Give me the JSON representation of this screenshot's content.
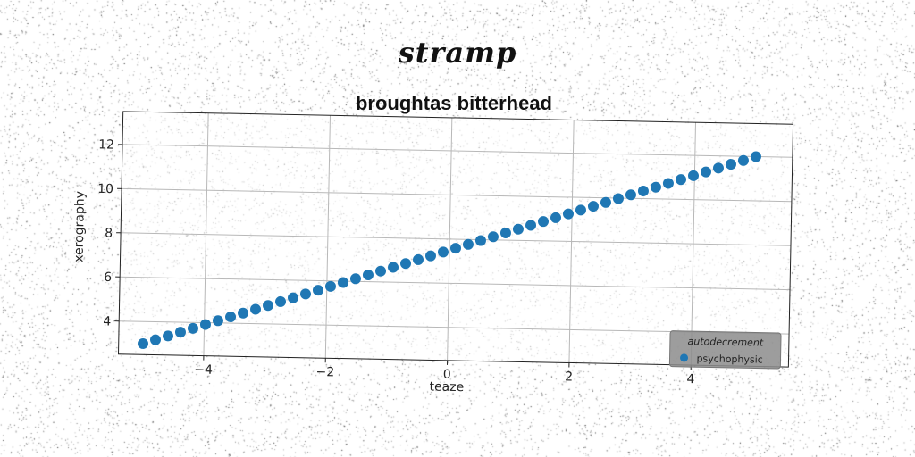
{
  "page": {
    "title": "stramp"
  },
  "chart_data": {
    "type": "scatter",
    "title": "broughtas bitterhead",
    "xlabel": "teaze",
    "ylabel": "xerography",
    "xlim": [
      -5.4,
      5.6
    ],
    "ylim": [
      2.5,
      13.5
    ],
    "xticks": [
      -4,
      -2,
      0,
      2,
      4
    ],
    "xtick_labels": [
      "−4",
      "−2",
      "0",
      "2",
      "4"
    ],
    "yticks": [
      4,
      6,
      8,
      10,
      12
    ],
    "ytick_labels": [
      "4",
      "6",
      "8",
      "10",
      "12"
    ],
    "grid": true,
    "legend": {
      "title": "autodecrement",
      "placement": "bottom-right"
    },
    "series": [
      {
        "name": "psychophysic",
        "color": "#1f77b4",
        "x": [
          -5.0,
          -4.796,
          -4.592,
          -4.388,
          -4.184,
          -3.98,
          -3.776,
          -3.571,
          -3.367,
          -3.163,
          -2.959,
          -2.755,
          -2.551,
          -2.347,
          -2.143,
          -1.939,
          -1.735,
          -1.531,
          -1.327,
          -1.122,
          -0.918,
          -0.714,
          -0.51,
          -0.306,
          -0.102,
          0.102,
          0.306,
          0.51,
          0.714,
          0.918,
          1.122,
          1.327,
          1.531,
          1.735,
          1.939,
          2.143,
          2.347,
          2.551,
          2.755,
          2.959,
          3.163,
          3.367,
          3.571,
          3.776,
          3.98,
          4.184,
          4.388,
          4.592,
          4.796,
          5.0
        ],
        "y": [
          3.0,
          3.184,
          3.367,
          3.551,
          3.735,
          3.918,
          4.102,
          4.286,
          4.469,
          4.653,
          4.837,
          5.02,
          5.204,
          5.388,
          5.571,
          5.755,
          5.939,
          6.122,
          6.306,
          6.49,
          6.673,
          6.857,
          7.041,
          7.224,
          7.408,
          7.592,
          7.776,
          7.959,
          8.143,
          8.327,
          8.51,
          8.694,
          8.878,
          9.061,
          9.245,
          9.429,
          9.612,
          9.796,
          9.98,
          10.163,
          10.347,
          10.531,
          10.714,
          10.898,
          11.082,
          11.265,
          11.449,
          11.633,
          11.816,
          12.0
        ]
      }
    ]
  }
}
